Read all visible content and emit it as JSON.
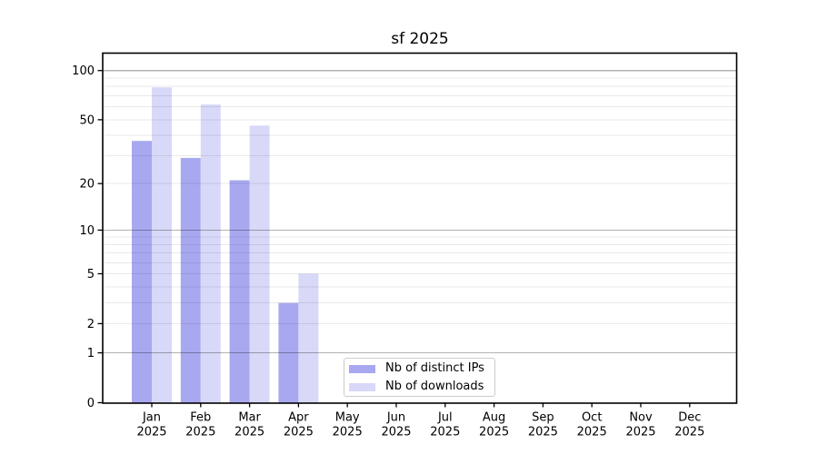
{
  "chart_data": {
    "type": "bar",
    "title": "sf 2025",
    "categories": [
      {
        "month": "Jan",
        "year": "2025"
      },
      {
        "month": "Feb",
        "year": "2025"
      },
      {
        "month": "Mar",
        "year": "2025"
      },
      {
        "month": "Apr",
        "year": "2025"
      },
      {
        "month": "May",
        "year": "2025"
      },
      {
        "month": "Jun",
        "year": "2025"
      },
      {
        "month": "Jul",
        "year": "2025"
      },
      {
        "month": "Aug",
        "year": "2025"
      },
      {
        "month": "Sep",
        "year": "2025"
      },
      {
        "month": "Oct",
        "year": "2025"
      },
      {
        "month": "Nov",
        "year": "2025"
      },
      {
        "month": "Dec",
        "year": "2025"
      }
    ],
    "series": [
      {
        "name": "Nb of distinct IPs",
        "color": "#a8a8f0",
        "values": [
          37,
          29,
          21,
          3,
          0,
          0,
          0,
          0,
          0,
          0,
          0,
          0
        ]
      },
      {
        "name": "Nb of downloads",
        "color": "#d8d8f8",
        "values": [
          79,
          62,
          46,
          5,
          0,
          0,
          0,
          0,
          0,
          0,
          0,
          0
        ]
      }
    ],
    "yscale": "log1p",
    "yticks": [
      0,
      1,
      2,
      5,
      10,
      20,
      50,
      100
    ],
    "ylim": [
      0,
      125
    ],
    "grid": {
      "orientation": "horizontal",
      "major_at": [
        1,
        10,
        100
      ],
      "minor_at": [
        2,
        3,
        4,
        5,
        6,
        7,
        8,
        9,
        20,
        30,
        40,
        50,
        60,
        70,
        80,
        90
      ],
      "major_color": "#b2b2b2",
      "minor_color": "#e9e9e9"
    },
    "legend_position": "lower center",
    "axis_color": "#000000"
  }
}
